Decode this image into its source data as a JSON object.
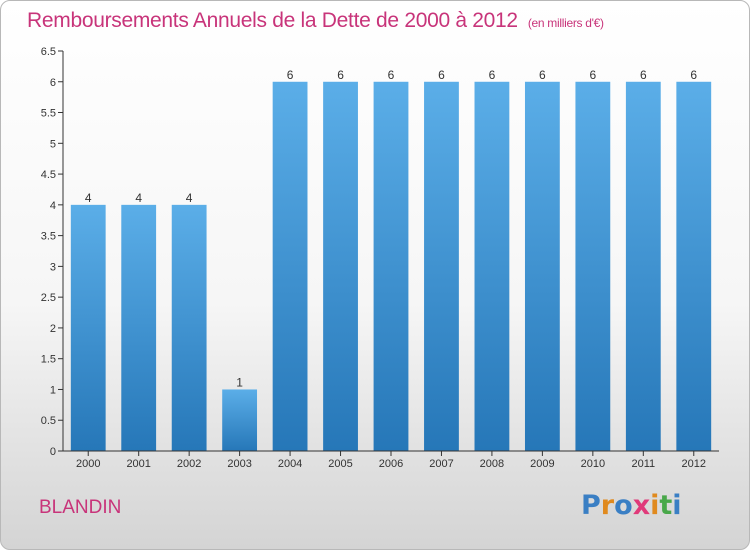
{
  "chart_data": {
    "type": "bar",
    "title": "Remboursements Annuels de la Dette de 2000 à 2012",
    "subtitle": "(en milliers d'€)",
    "categories": [
      "2000",
      "2001",
      "2002",
      "2003",
      "2004",
      "2005",
      "2006",
      "2007",
      "2008",
      "2009",
      "2010",
      "2011",
      "2012"
    ],
    "values": [
      4,
      4,
      4,
      1,
      6,
      6,
      6,
      6,
      6,
      6,
      6,
      6,
      6
    ],
    "data_labels": [
      "4",
      "4",
      "4",
      "1",
      "6",
      "6",
      "6",
      "6",
      "6",
      "6",
      "6",
      "6",
      "6"
    ],
    "ylim": [
      0,
      6.5
    ],
    "yticks": [
      "0",
      "0.5",
      "1",
      "1.5",
      "2",
      "2.5",
      "3",
      "3.5",
      "4",
      "4.5",
      "5",
      "5.5",
      "6",
      "6.5"
    ],
    "xlabel": "",
    "ylabel": "",
    "grid": false,
    "bar_color_top": "#5baee8",
    "bar_color_bottom": "#2677b8"
  },
  "footer": {
    "place_name": "BLANDIN",
    "logo_letters": [
      "P",
      "r",
      "o",
      "x",
      "i",
      "t",
      "i"
    ],
    "logo_colors": [
      "#3a7fc4",
      "#e08a1e",
      "#3a7fc4",
      "#e03a7a",
      "#e08a1e",
      "#49a84a",
      "#3a7fc4"
    ]
  },
  "colors": {
    "title": "#c8347a",
    "axis": "#333333"
  }
}
